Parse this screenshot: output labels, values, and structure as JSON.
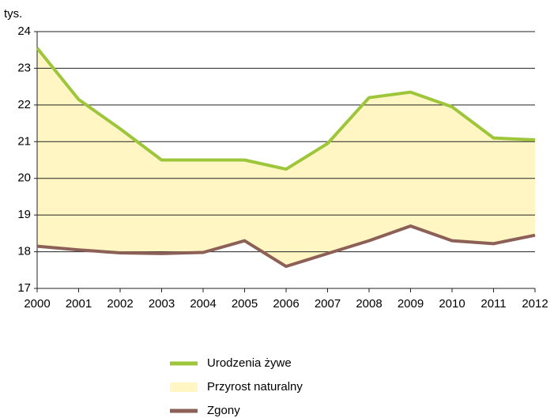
{
  "chart_data": {
    "type": "line",
    "y_label": "tys.",
    "categories": [
      "2000",
      "2001",
      "2002",
      "2003",
      "2004",
      "2005",
      "2006",
      "2007",
      "2008",
      "2009",
      "2010",
      "2011",
      "2012"
    ],
    "series": [
      {
        "name": "Urodzenia żywe",
        "color": "#9dc63b",
        "values": [
          23.55,
          22.15,
          21.35,
          20.5,
          20.5,
          20.5,
          20.25,
          20.95,
          22.2,
          22.35,
          21.95,
          21.1,
          21.05
        ]
      },
      {
        "name": "Zgony",
        "color": "#8c6056",
        "values": [
          18.15,
          18.05,
          17.97,
          17.95,
          17.98,
          18.3,
          17.6,
          17.95,
          18.3,
          18.7,
          18.3,
          18.22,
          18.45
        ]
      }
    ],
    "fill": {
      "name": "Przyrost naturalny",
      "color": "#fff6c4"
    },
    "ylim": [
      17,
      24
    ],
    "yticks": [
      17,
      18,
      19,
      20,
      21,
      22,
      23,
      24
    ],
    "grid": true
  }
}
